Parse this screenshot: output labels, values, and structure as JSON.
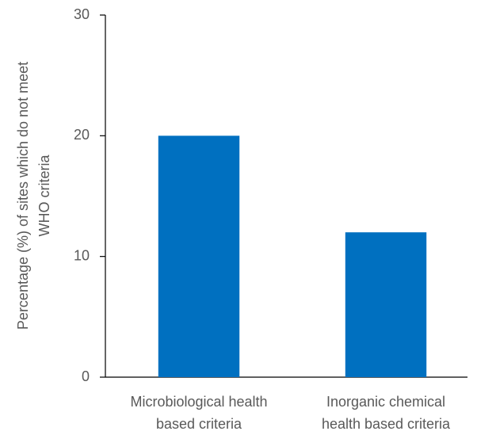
{
  "chart_data": {
    "type": "bar",
    "ylabel": [
      "Percentage (%) of sites which do not meet",
      "WHO criteria"
    ],
    "categories": [
      [
        "Microbiological health",
        "based criteria"
      ],
      [
        "Inorganic chemical",
        "health based criteria"
      ]
    ],
    "values": [
      20,
      12
    ],
    "color": "#0070c0",
    "ylim": [
      0,
      30
    ],
    "yticks": [
      0,
      10,
      20,
      30
    ],
    "grid": false
  }
}
